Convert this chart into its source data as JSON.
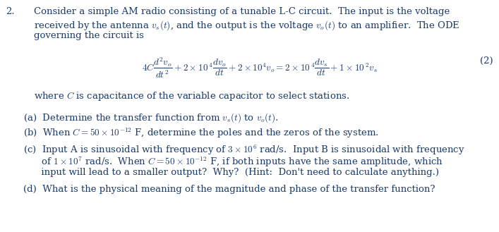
{
  "bg_color": "#ffffff",
  "text_color": "#1a3a6b",
  "fig_width": 7.07,
  "fig_height": 3.29,
  "dpi": 100,
  "fs_main": 9.5,
  "fs_eq": 9.5,
  "intro_line1": "Consider a simple AM radio consisting of a tunable L-C circuit.  The input is the voltage",
  "intro_line2": "received by the antenna $v_s(t)$, and the output is the voltage $v_o(t)$ to an amplifier.  The ODE",
  "intro_line3": "governing the circuit is",
  "equation": "$4C\\dfrac{d^2v_o}{dt^2} + 2 \\times 10^{\\,4}\\dfrac{dv_o}{dt} + 2 \\times 10^4 v_o = 2 \\times 10^{\\,4}\\dfrac{dv_s}{dt} + 1 \\times 10^{\\,2}v_s$",
  "eq_number": "(2)",
  "where_line": "where $C$ is capacitance of the variable capacitor to select stations.",
  "part_a": "(a)  Determine the transfer function from $v_s(t)$ to $v_o(t)$.",
  "part_b": "(b)  When $C = 50 \\times 10^{-12}$ F, determine the poles and the zeros of the system.",
  "part_c1": "(c)  Input A is sinusoidal with frequency of $3 \\times10^6$ rad/s.  Input B is sinusoidal with frequency",
  "part_c2": "      of $1 \\times10^7$ rad/s.  When $C = 50\\times10^{-12}$ F, if both inputs have the same amplitude, which",
  "part_c3": "      input will lead to a smaller output?  Why?  (Hint:  Don't need to calculate anything.)",
  "part_d": "(d)  What is the physical meaning of the magnitude and phase of the transfer function?"
}
